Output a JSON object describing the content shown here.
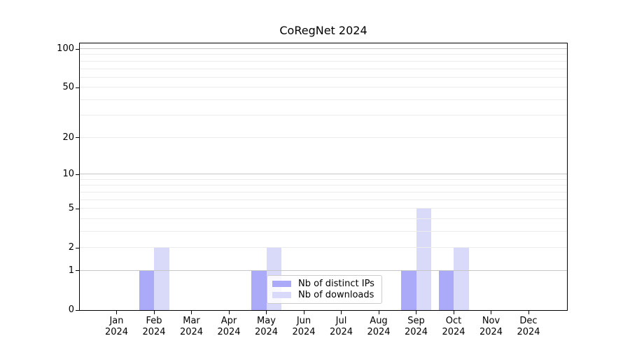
{
  "title": "CoRegNet 2024",
  "chart_data": {
    "type": "bar",
    "title": "CoRegNet 2024",
    "x_categories": [
      {
        "label": "Jan",
        "sub": "2024"
      },
      {
        "label": "Feb",
        "sub": "2024"
      },
      {
        "label": "Mar",
        "sub": "2024"
      },
      {
        "label": "Apr",
        "sub": "2024"
      },
      {
        "label": "May",
        "sub": "2024"
      },
      {
        "label": "Jun",
        "sub": "2024"
      },
      {
        "label": "Jul",
        "sub": "2024"
      },
      {
        "label": "Aug",
        "sub": "2024"
      },
      {
        "label": "Sep",
        "sub": "2024"
      },
      {
        "label": "Oct",
        "sub": "2024"
      },
      {
        "label": "Nov",
        "sub": "2024"
      },
      {
        "label": "Dec",
        "sub": "2024"
      }
    ],
    "series": [
      {
        "name": "Nb of distinct IPs",
        "color": "#aaaaf8",
        "values": [
          0,
          1,
          0,
          0,
          1,
          0,
          0,
          0,
          1,
          1,
          0,
          0
        ]
      },
      {
        "name": "Nb of downloads",
        "color": "#d9d9f9",
        "values": [
          0,
          2,
          0,
          0,
          2,
          0,
          0,
          0,
          5,
          2,
          0,
          0
        ]
      }
    ],
    "y_axis": {
      "scale": "log1p",
      "range": [
        0,
        110
      ],
      "tick_labels": [
        0,
        1,
        2,
        5,
        10,
        20,
        50,
        100
      ],
      "major_gridlines": [
        1,
        10,
        100
      ],
      "minor_gridlines": [
        2,
        3,
        4,
        5,
        6,
        7,
        8,
        9,
        20,
        30,
        40,
        50,
        60,
        70,
        80,
        90
      ]
    },
    "legend_position": "lower center",
    "colors": {
      "grid_major": "#c6c6c6",
      "grid_minor": "#ececec",
      "spine": "#000000"
    }
  }
}
